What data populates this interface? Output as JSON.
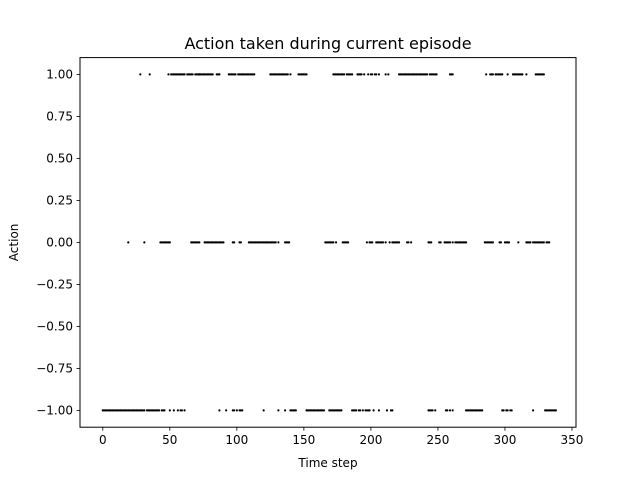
{
  "chart_data": {
    "type": "scatter",
    "title": "Action taken during current episode",
    "xlabel": "Time step",
    "ylabel": "Action",
    "xlim": [
      -17,
      353
    ],
    "ylim": [
      -1.1,
      1.1
    ],
    "xticks": [
      0,
      50,
      100,
      150,
      200,
      250,
      300,
      350
    ],
    "yticks": [
      -1.0,
      -0.75,
      -0.5,
      -0.25,
      0.0,
      0.25,
      0.5,
      0.75,
      1.0
    ],
    "ytick_labels": [
      "−1.00",
      "−0.75",
      "−0.50",
      "−0.25",
      "0.00",
      "0.25",
      "0.50",
      "0.75",
      "1.00"
    ],
    "grid": false,
    "marker_color": "#000000",
    "series": [
      {
        "y": 1.0,
        "x": [
          28,
          35,
          49,
          51,
          52,
          53,
          54,
          55,
          56,
          57,
          58,
          59,
          60,
          61,
          63,
          64,
          65,
          66,
          67,
          69,
          70,
          71,
          72,
          73,
          74,
          75,
          76,
          77,
          72,
          78,
          79,
          80,
          81,
          82,
          85,
          86,
          87,
          94,
          95,
          96,
          97,
          98,
          99,
          101,
          102,
          103,
          104,
          105,
          106,
          107,
          108,
          109,
          110,
          111,
          112,
          113,
          125,
          126,
          127,
          128,
          129,
          130,
          131,
          132,
          133,
          134,
          135,
          136,
          137,
          138,
          140,
          146,
          147,
          148,
          149,
          150,
          151,
          152,
          172,
          173,
          174,
          175,
          176,
          177,
          178,
          179,
          180,
          182,
          183,
          184,
          185,
          186,
          190,
          191,
          192,
          193,
          195,
          198,
          200,
          201,
          203,
          204,
          206,
          211,
          213,
          221,
          222,
          223,
          224,
          225,
          226,
          227,
          228,
          229,
          230,
          231,
          232,
          233,
          234,
          235,
          236,
          237,
          238,
          239,
          240,
          241,
          242,
          244,
          245,
          246,
          247,
          248,
          249,
          259,
          260,
          261,
          286,
          289,
          290,
          291,
          293,
          294,
          295,
          296,
          297,
          298,
          302,
          306,
          307,
          308,
          309,
          310,
          311,
          312,
          313,
          316,
          323,
          324,
          325,
          326,
          327,
          328,
          329
        ]
      },
      {
        "y": 0.0,
        "x": [
          19,
          31,
          43,
          44,
          45,
          46,
          47,
          48,
          49,
          50,
          66,
          67,
          68,
          69,
          70,
          71,
          72,
          76,
          77,
          78,
          79,
          80,
          81,
          82,
          83,
          84,
          85,
          86,
          87,
          88,
          89,
          90,
          97,
          98,
          102,
          103,
          109,
          110,
          111,
          112,
          113,
          114,
          115,
          116,
          117,
          118,
          119,
          120,
          121,
          122,
          123,
          124,
          125,
          126,
          127,
          128,
          129,
          131,
          136,
          137,
          138,
          139,
          166,
          167,
          168,
          169,
          170,
          171,
          172,
          174,
          179,
          180,
          181,
          182,
          183,
          197,
          199,
          200,
          201,
          204,
          205,
          206,
          207,
          208,
          209,
          211,
          214,
          216,
          217,
          218,
          219,
          220,
          221,
          227,
          228,
          230,
          243,
          244,
          245,
          251,
          252,
          255,
          256,
          257,
          258,
          259,
          261,
          263,
          264,
          265,
          266,
          267,
          268,
          269,
          270,
          271,
          285,
          286,
          287,
          288,
          289,
          290,
          291,
          296,
          297,
          300,
          301,
          302,
          303,
          310,
          316,
          317,
          318,
          319,
          321,
          322,
          323,
          324,
          325,
          326,
          327,
          328,
          329,
          331,
          332,
          333
        ]
      },
      {
        "y": -1.0,
        "x": [
          0,
          1,
          2,
          3,
          4,
          5,
          6,
          7,
          8,
          9,
          10,
          11,
          12,
          13,
          14,
          15,
          16,
          17,
          18,
          19,
          20,
          21,
          22,
          23,
          24,
          25,
          26,
          27,
          28,
          29,
          30,
          31,
          33,
          34,
          35,
          36,
          37,
          38,
          39,
          40,
          41,
          42,
          44,
          45,
          46,
          50,
          53,
          56,
          58,
          59,
          61,
          87,
          92,
          97,
          98,
          100,
          102,
          103,
          104,
          120,
          131,
          136,
          140,
          141,
          142,
          143,
          144,
          152,
          153,
          154,
          155,
          156,
          157,
          158,
          159,
          160,
          161,
          162,
          163,
          164,
          165,
          169,
          170,
          171,
          172,
          173,
          174,
          175,
          176,
          177,
          178,
          186,
          187,
          188,
          189,
          191,
          192,
          194,
          196,
          197,
          198,
          199,
          202,
          206,
          212,
          215,
          216,
          243,
          244,
          245,
          246,
          248,
          256,
          257,
          259,
          261,
          271,
          272,
          273,
          274,
          275,
          276,
          277,
          278,
          279,
          280,
          281,
          282,
          283,
          298,
          299,
          301,
          302,
          304,
          305,
          321,
          330,
          331,
          332,
          333,
          334,
          335,
          336,
          337,
          338
        ]
      }
    ]
  }
}
